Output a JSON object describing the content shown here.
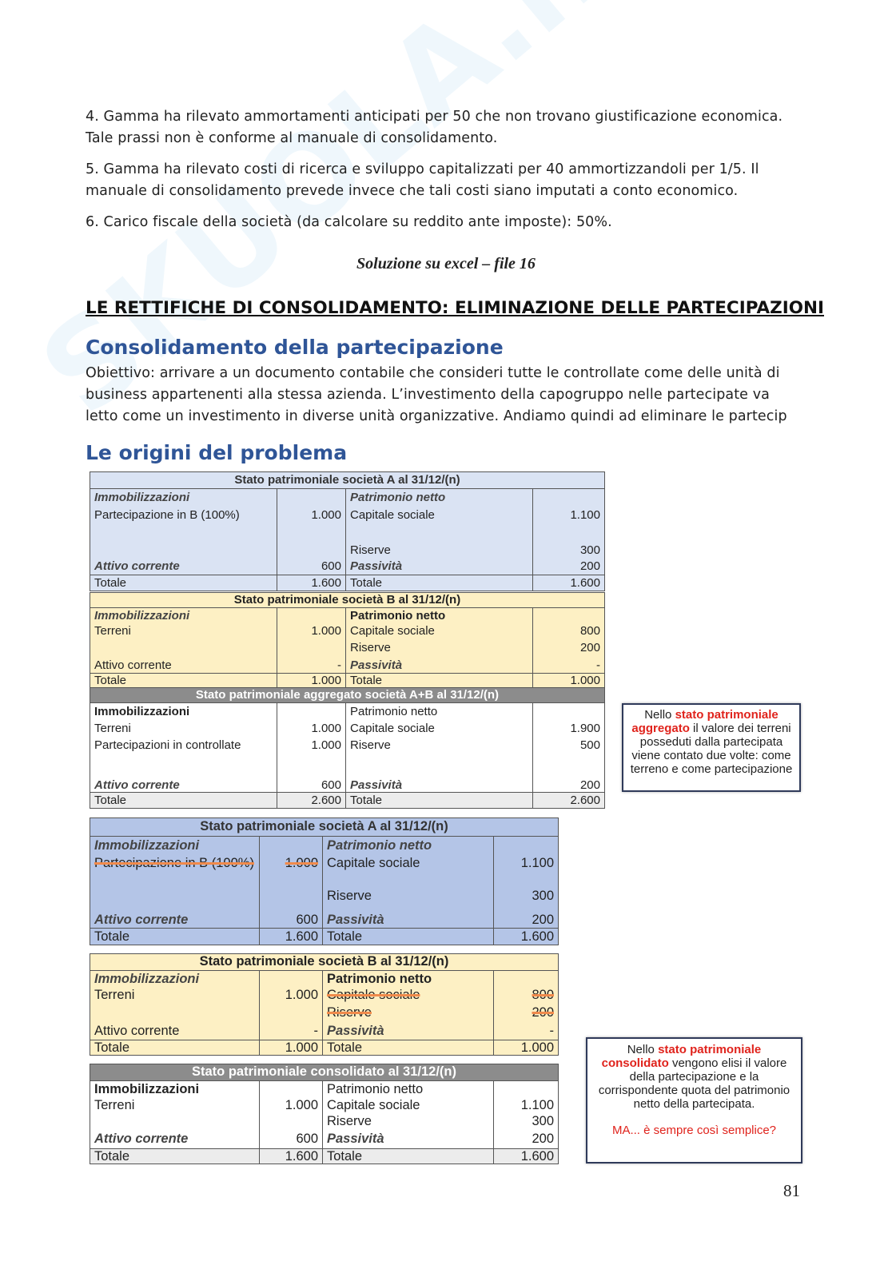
{
  "watermark": "SKUOLA.net",
  "paragraphs": [
    "4. Gamma ha rilevato ammortamenti anticipati per 50 che non trovano giustificazione economica. Tale prassi non è conforme al manuale di consolidamento.",
    "5. Gamma ha rilevato costi di ricerca e sviluppo capitalizzati per 40 ammortizzandoli per 1/5. Il manuale di consolidamento prevede invece che tali costi siano imputati a conto economico.",
    "6. Carico fiscale della società (da calcolare su reddito ante imposte): 50%."
  ],
  "solution_note": "Soluzione su excel – file 16",
  "section_title": "LE RETTIFICHE DI CONSOLIDAMENTO: ELIMINAZIONE DELLE PARTECIPAZIONI",
  "subsection1": {
    "title": "Consolidamento della partecipazione",
    "text": "Obiettivo: arrivare a un documento contabile che consideri tutte le controllate come delle unità di business appartenenti alla stessa azienda. L’investimento della capogruppo nelle partecipate va letto come un investimento in diverse unità organizzative. Andiamo quindi ad eliminare le partecip"
  },
  "subsection2": {
    "title": "Le origini del problema"
  },
  "colors": {
    "blue_light": "#dae3f3",
    "blue_dark": "#b4c5e7",
    "yellow": "#fdf0c4",
    "gray_header": "#8c8c8c",
    "total_gray": "#ececec",
    "accent_red": "#e0231c",
    "heading_blue": "#2f5597"
  },
  "tables": [
    {
      "title": "Stato patrimoniale società A al 31/12/(n)",
      "rows": [
        [
          "Immobilizzazioni",
          "",
          "Patrimonio netto",
          ""
        ],
        [
          "Partecipazione in B (100%)",
          "1.000",
          "Capitale sociale",
          "1.100"
        ],
        [
          "",
          "",
          "Riserve",
          "300"
        ],
        [
          "Attivo corrente",
          "600",
          "Passività",
          "200"
        ],
        [
          "Totale",
          "1.600",
          "Totale",
          "1.600"
        ]
      ]
    },
    {
      "title": "Stato patrimoniale società B al 31/12/(n)",
      "rows": [
        [
          "Immobilizzazioni",
          "",
          "Patrimonio netto",
          ""
        ],
        [
          "Terreni",
          "1.000",
          "Capitale sociale",
          "800"
        ],
        [
          "",
          "",
          "Riserve",
          "200"
        ],
        [
          "Attivo corrente",
          "-",
          "Passività",
          "-"
        ],
        [
          "Totale",
          "1.000",
          "Totale",
          "1.000"
        ]
      ]
    },
    {
      "title": "Stato patrimoniale aggregato società A+B al 31/12/(n)",
      "rows": [
        [
          "Immobilizzazioni",
          "",
          "Patrimonio netto",
          ""
        ],
        [
          "Terreni",
          "1.000",
          "Capitale sociale",
          "1.900"
        ],
        [
          "Partecipazioni in controllate",
          "1.000",
          "Riserve",
          "500"
        ],
        [
          "Attivo corrente",
          "600",
          "Passività",
          "200"
        ],
        [
          "Totale",
          "2.600",
          "Totale",
          "2.600"
        ]
      ]
    },
    {
      "title": "Stato patrimoniale società A al 31/12/(n)",
      "rows": [
        [
          "Immobilizzazioni",
          "",
          "Patrimonio netto",
          ""
        ],
        [
          "Partecipazione in B (100%)",
          "1.000",
          "Capitale sociale",
          "1.100"
        ],
        [
          "",
          "",
          "Riserve",
          "300"
        ],
        [
          "Attivo corrente",
          "600",
          "Passività",
          "200"
        ],
        [
          "Totale",
          "1.600",
          "Totale",
          "1.600"
        ]
      ]
    },
    {
      "title": "Stato patrimoniale società B al 31/12/(n)",
      "rows": [
        [
          "Immobilizzazioni",
          "",
          "Patrimonio netto",
          ""
        ],
        [
          "Terreni",
          "1.000",
          "Capitale sociale",
          "800"
        ],
        [
          "",
          "",
          "Riserve",
          "200"
        ],
        [
          "Attivo corrente",
          "-",
          "Passività",
          "-"
        ],
        [
          "Totale",
          "1.000",
          "Totale",
          "1.000"
        ]
      ]
    },
    {
      "title": "Stato patrimoniale consolidato al 31/12/(n)",
      "rows": [
        [
          "Immobilizzazioni",
          "",
          "Patrimonio netto",
          ""
        ],
        [
          "Terreni",
          "1.000",
          "Capitale sociale",
          "1.100"
        ],
        [
          "",
          "",
          "Riserve",
          "300"
        ],
        [
          "Attivo corrente",
          "600",
          "Passività",
          "200"
        ],
        [
          "Totale",
          "1.600",
          "Totale",
          "1.600"
        ]
      ]
    }
  ],
  "note1": {
    "pre": "Nello ",
    "highlight": "stato patrimoniale aggregato",
    "post": " il valore dei terreni posseduti dalla partecipata viene contato due volte: come terreno e come partecipazione"
  },
  "note2": {
    "pre": "Nello ",
    "highlight": "stato patrimoniale consolidato",
    "post": " vengono elisi il valore della partecipazione e la corrispondente quota del patrimonio netto della partecipata.",
    "question": "MA... è sempre così semplice?"
  },
  "page_number": "81"
}
